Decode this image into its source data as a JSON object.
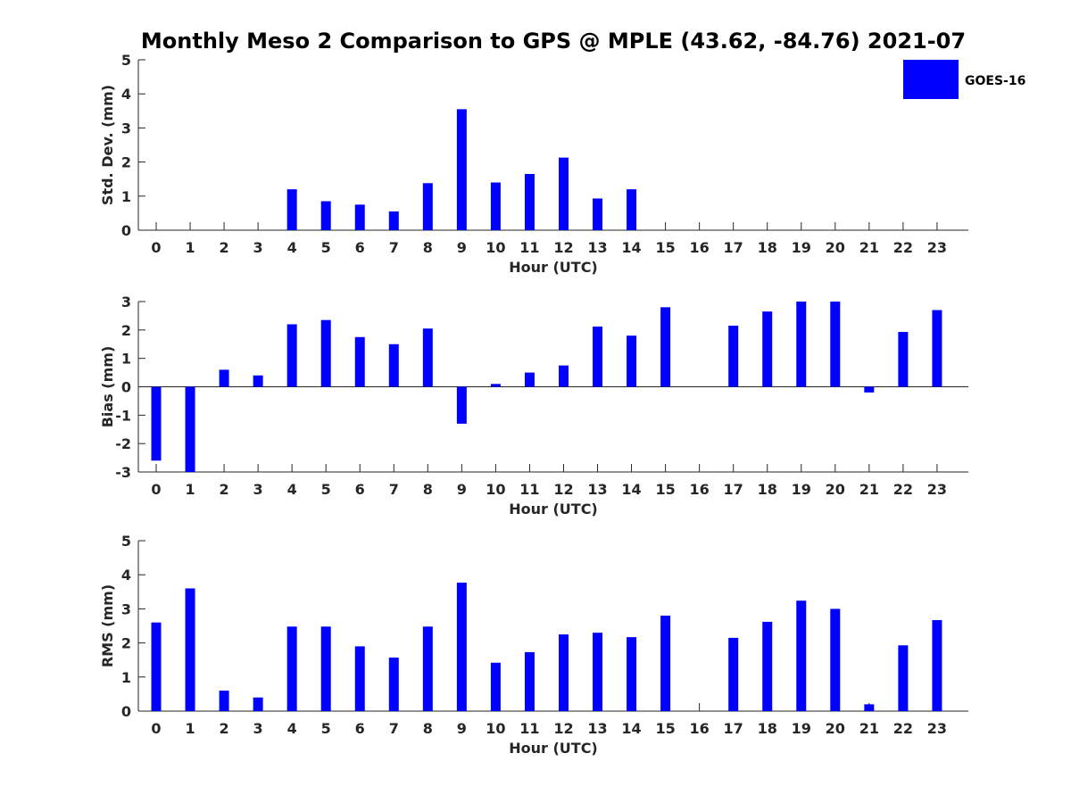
{
  "figure": {
    "title": "Monthly Meso 2 Comparison to GPS @ MPLE (43.62, -84.76) 2021-07",
    "bar_color": "#0000ff",
    "legend": {
      "label": "GOES-16"
    }
  },
  "chart_data": [
    {
      "type": "bar",
      "title": "Monthly Meso 2 Comparison to GPS @ MPLE (43.62, -84.76) 2021-07",
      "xlabel": "Hour (UTC)",
      "ylabel": "Std. Dev. (mm)",
      "ylim": [
        0,
        5
      ],
      "yticks": [
        0,
        1,
        2,
        3,
        4,
        5
      ],
      "categories": [
        "0",
        "1",
        "2",
        "3",
        "4",
        "5",
        "6",
        "7",
        "8",
        "9",
        "10",
        "11",
        "12",
        "13",
        "14",
        "15",
        "16",
        "17",
        "18",
        "19",
        "20",
        "21",
        "22",
        "23"
      ],
      "series": [
        {
          "name": "GOES-16",
          "values": [
            0,
            0,
            0,
            0,
            1.2,
            0.85,
            0.75,
            0.55,
            1.38,
            3.55,
            1.4,
            1.65,
            2.13,
            0.93,
            1.2,
            0,
            0,
            0,
            0,
            0,
            0,
            0,
            0,
            0
          ]
        }
      ]
    },
    {
      "type": "bar",
      "xlabel": "Hour (UTC)",
      "ylabel": "Bias (mm)",
      "ylim": [
        -3,
        3
      ],
      "yticks": [
        -3,
        -2,
        -1,
        0,
        1,
        2,
        3
      ],
      "categories": [
        "0",
        "1",
        "2",
        "3",
        "4",
        "5",
        "6",
        "7",
        "8",
        "9",
        "10",
        "11",
        "12",
        "13",
        "14",
        "15",
        "16",
        "17",
        "18",
        "19",
        "20",
        "21",
        "22",
        "23"
      ],
      "series": [
        {
          "name": "GOES-16",
          "values": [
            -2.6,
            -3.0,
            0.6,
            0.4,
            2.2,
            2.35,
            1.75,
            1.5,
            2.05,
            -1.3,
            0.1,
            0.5,
            0.75,
            2.12,
            1.8,
            2.8,
            0,
            2.15,
            2.65,
            3.0,
            3.0,
            -0.2,
            1.93,
            2.7
          ]
        }
      ]
    },
    {
      "type": "bar",
      "xlabel": "Hour (UTC)",
      "ylabel": "RMS (mm)",
      "ylim": [
        0,
        5
      ],
      "yticks": [
        0,
        1,
        2,
        3,
        4,
        5
      ],
      "categories": [
        "0",
        "1",
        "2",
        "3",
        "4",
        "5",
        "6",
        "7",
        "8",
        "9",
        "10",
        "11",
        "12",
        "13",
        "14",
        "15",
        "16",
        "17",
        "18",
        "19",
        "20",
        "21",
        "22",
        "23"
      ],
      "series": [
        {
          "name": "GOES-16",
          "values": [
            2.6,
            3.6,
            0.6,
            0.4,
            2.48,
            2.48,
            1.9,
            1.57,
            2.48,
            3.77,
            1.42,
            1.73,
            2.25,
            2.3,
            2.17,
            2.8,
            0,
            2.15,
            2.62,
            3.24,
            3.0,
            0.2,
            1.93,
            2.67
          ]
        }
      ]
    }
  ]
}
